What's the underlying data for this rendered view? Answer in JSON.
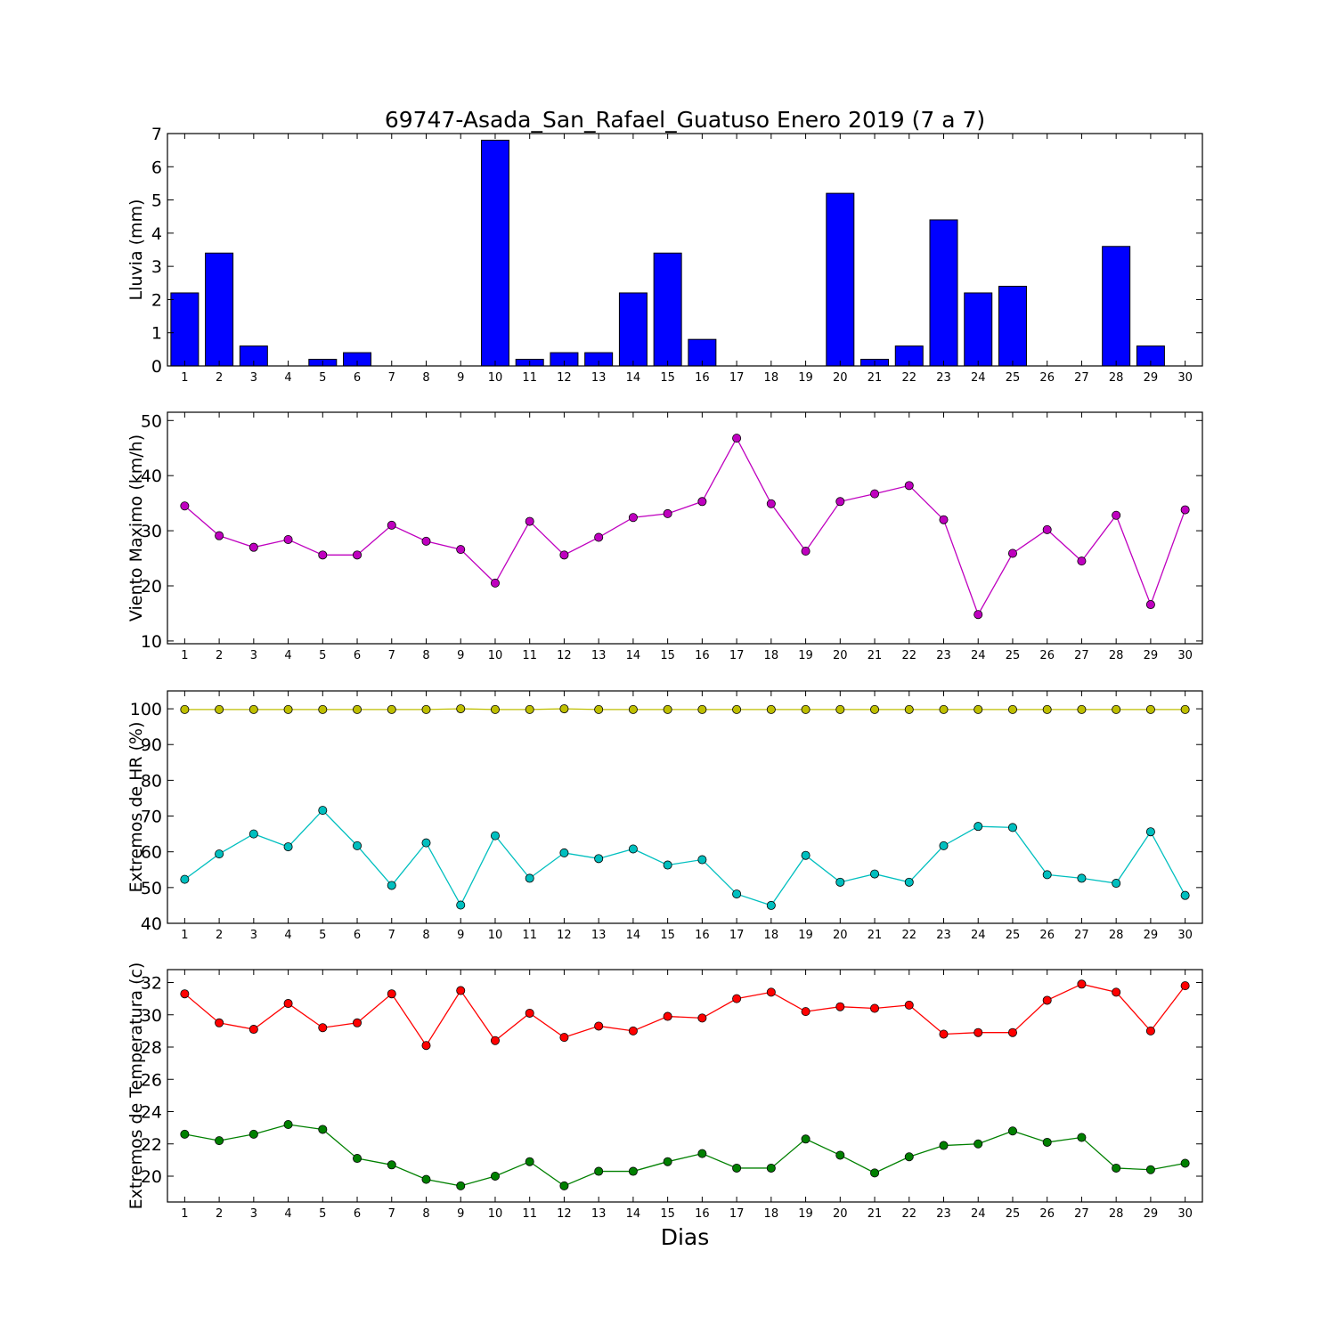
{
  "figure": {
    "title": "69747-Asada_San_Rafael_Guatuso Enero 2019  (7 a 7)",
    "xlabel": "Dias"
  },
  "chart_data": [
    {
      "type": "bar",
      "ylabel": "Lluvia (mm)",
      "x": [
        1,
        2,
        3,
        4,
        5,
        6,
        7,
        8,
        9,
        10,
        11,
        12,
        13,
        14,
        15,
        16,
        17,
        18,
        19,
        20,
        21,
        22,
        23,
        24,
        25,
        26,
        27,
        28,
        29,
        30
      ],
      "xlim": [
        0.5,
        30.5
      ],
      "ylim": [
        0,
        7
      ],
      "yticks": [
        0,
        1,
        2,
        3,
        4,
        5,
        6,
        7
      ],
      "color": "#0000ff",
      "series": [
        {
          "values": [
            2.2,
            3.4,
            0.6,
            0,
            0.2,
            0.4,
            0,
            0,
            0,
            6.8,
            0.2,
            0.4,
            0.4,
            2.2,
            3.4,
            0.8,
            0,
            0,
            0,
            5.2,
            0.2,
            0.6,
            4.4,
            2.2,
            2.4,
            0,
            0,
            3.6,
            0.6,
            0
          ]
        }
      ]
    },
    {
      "type": "line",
      "ylabel": "Viento Maximo (km/h)",
      "x": [
        1,
        2,
        3,
        4,
        5,
        6,
        7,
        8,
        9,
        10,
        11,
        12,
        13,
        14,
        15,
        16,
        17,
        18,
        19,
        20,
        21,
        22,
        23,
        24,
        25,
        26,
        27,
        28,
        29,
        30
      ],
      "xlim": [
        0.5,
        30.5
      ],
      "ylim": [
        9.5,
        51.5
      ],
      "yticks": [
        10,
        20,
        30,
        40,
        50
      ],
      "series": [
        {
          "color": "#bf00bf",
          "values": [
            34.5,
            29.1,
            27.0,
            28.4,
            25.6,
            25.6,
            31.0,
            28.1,
            26.6,
            20.5,
            31.7,
            25.6,
            28.8,
            32.4,
            33.1,
            35.3,
            46.8,
            34.9,
            26.3,
            35.3,
            36.7,
            38.2,
            32.0,
            14.8,
            25.9,
            30.2,
            24.5,
            32.8,
            16.6,
            33.8
          ]
        }
      ]
    },
    {
      "type": "line",
      "ylabel": "Extremos de HR (%)",
      "x": [
        1,
        2,
        3,
        4,
        5,
        6,
        7,
        8,
        9,
        10,
        11,
        12,
        13,
        14,
        15,
        16,
        17,
        18,
        19,
        20,
        21,
        22,
        23,
        24,
        25,
        26,
        27,
        28,
        29,
        30
      ],
      "xlim": [
        0.5,
        30.5
      ],
      "ylim": [
        40,
        105
      ],
      "yticks": [
        40,
        50,
        60,
        70,
        80,
        90,
        100
      ],
      "series": [
        {
          "color": "#bfbf00",
          "values": [
            99.8,
            99.8,
            99.8,
            99.8,
            99.8,
            99.8,
            99.8,
            99.8,
            100,
            99.8,
            99.8,
            100,
            99.8,
            99.8,
            99.8,
            99.8,
            99.8,
            99.8,
            99.8,
            99.8,
            99.8,
            99.8,
            99.8,
            99.8,
            99.8,
            99.8,
            99.8,
            99.8,
            99.8,
            99.8
          ]
        },
        {
          "color": "#00bfbf",
          "values": [
            52.3,
            59.4,
            65.0,
            61.4,
            71.6,
            61.7,
            50.6,
            62.5,
            45.1,
            64.5,
            52.6,
            59.7,
            58.1,
            60.8,
            56.3,
            57.8,
            48.2,
            45.0,
            59.0,
            51.5,
            53.8,
            51.5,
            61.7,
            67.1,
            66.8,
            53.6,
            52.6,
            51.2,
            65.6,
            47.8
          ]
        }
      ]
    },
    {
      "type": "line",
      "ylabel": "Extremos de Temperatura (c)",
      "x": [
        1,
        2,
        3,
        4,
        5,
        6,
        7,
        8,
        9,
        10,
        11,
        12,
        13,
        14,
        15,
        16,
        17,
        18,
        19,
        20,
        21,
        22,
        23,
        24,
        25,
        26,
        27,
        28,
        29,
        30
      ],
      "xlim": [
        0.5,
        30.5
      ],
      "ylim": [
        18.4,
        32.8
      ],
      "yticks": [
        20,
        22,
        24,
        26,
        28,
        30,
        32
      ],
      "series": [
        {
          "color": "#ff0000",
          "values": [
            31.3,
            29.5,
            29.1,
            30.7,
            29.2,
            29.5,
            31.3,
            28.1,
            31.5,
            28.4,
            30.1,
            28.6,
            29.3,
            29.0,
            29.9,
            29.8,
            31.0,
            31.4,
            30.2,
            30.5,
            30.4,
            30.6,
            28.8,
            28.9,
            28.9,
            30.9,
            31.9,
            31.4,
            29.0,
            31.8
          ]
        },
        {
          "color": "#008000",
          "values": [
            22.6,
            22.2,
            22.6,
            23.2,
            22.9,
            21.1,
            20.7,
            19.8,
            19.4,
            20.0,
            20.9,
            19.4,
            20.3,
            20.3,
            20.9,
            21.4,
            20.5,
            20.5,
            22.3,
            21.3,
            20.2,
            21.2,
            21.9,
            22.0,
            22.8,
            22.1,
            22.4,
            20.5,
            20.4,
            20.8
          ]
        }
      ]
    }
  ]
}
